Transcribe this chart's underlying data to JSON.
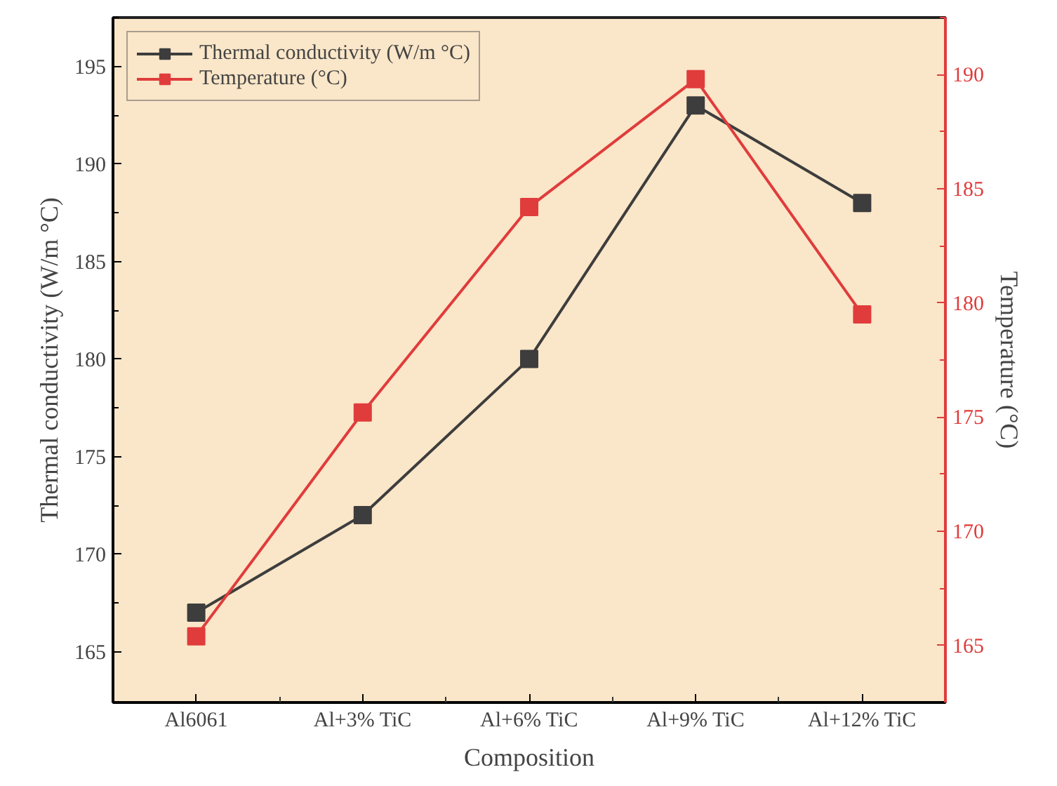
{
  "chart_data": {
    "type": "line",
    "xlabel": "Composition",
    "ylabel": "Thermal conductivity (W/m °C)",
    "y2label": "Temperature (°C)",
    "categories": [
      "Al6061",
      "Al+3% TiC",
      "Al+6% TiC",
      "Al+9% TiC",
      "Al+12% TiC"
    ],
    "series": [
      {
        "name": "Thermal conductivity (W/m °C)",
        "color": "#3d3d3d",
        "values": [
          167,
          172,
          180,
          193,
          188
        ]
      },
      {
        "name": "Temperature (°C)",
        "color": "#e03c3c",
        "values": [
          165.4,
          175.2,
          184.2,
          189.8,
          179.5
        ],
        "axis": "y2"
      }
    ],
    "ylim": [
      162.4,
      197.5
    ],
    "yticks": [
      165,
      170,
      175,
      180,
      185,
      190,
      195
    ],
    "y2lim": [
      162.5,
      192.5
    ],
    "y2ticks": [
      165,
      170,
      175,
      180,
      185,
      190
    ],
    "grid": false,
    "legend": "top left",
    "marker": "square"
  }
}
